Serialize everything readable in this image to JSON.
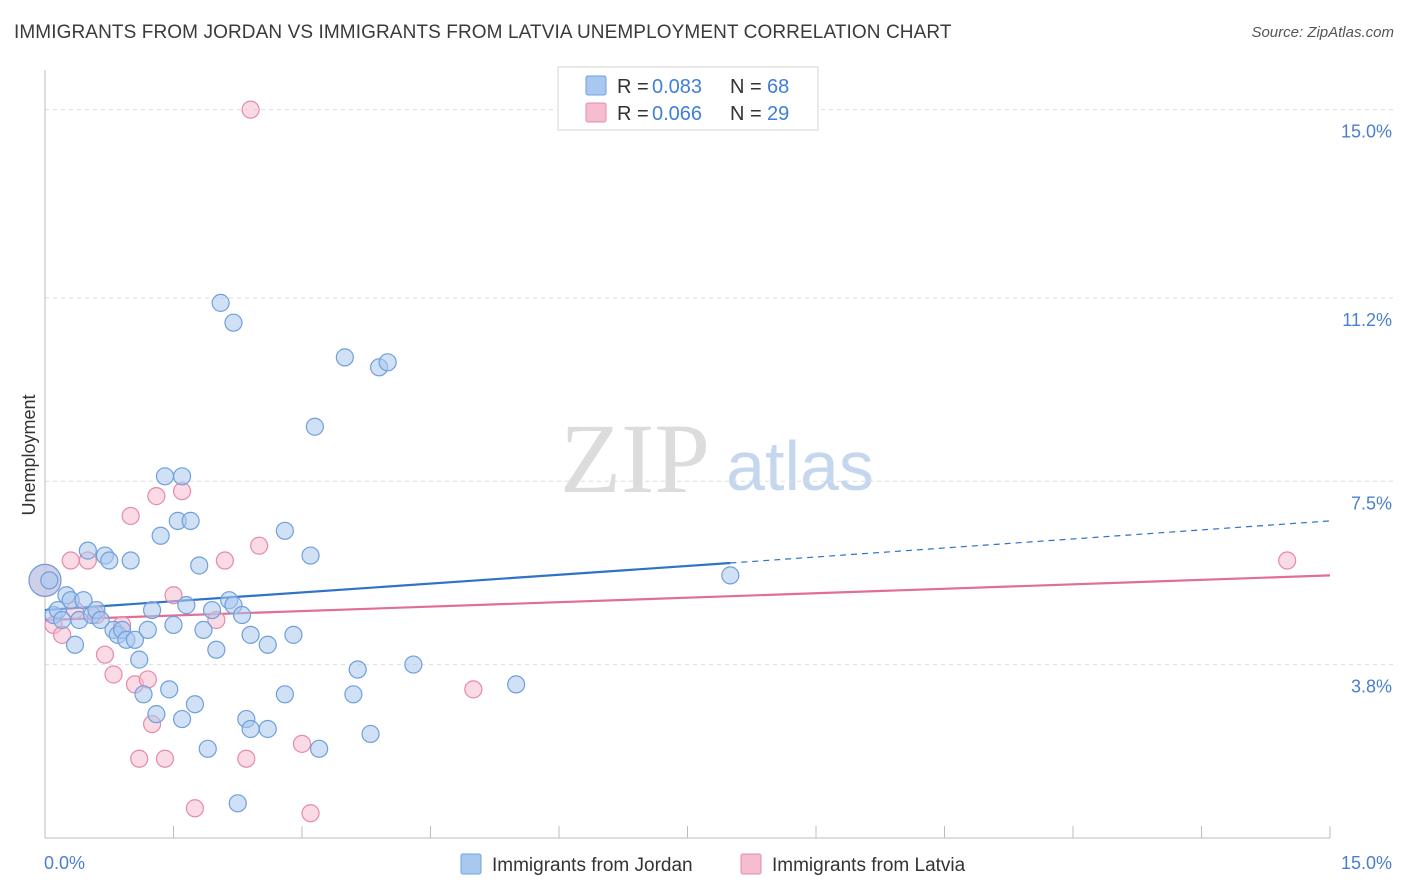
{
  "header": {
    "title": "IMMIGRANTS FROM JORDAN VS IMMIGRANTS FROM LATVIA UNEMPLOYMENT CORRELATION CHART",
    "source": "Source: ZipAtlas.com"
  },
  "watermark": {
    "zip": "ZIP",
    "atlas": "atlas"
  },
  "colors": {
    "jordan_fill": "#a9c8ef",
    "jordan_stroke": "#6f9fdc",
    "jordan_line": "#2f72c8",
    "latvia_fill": "#f6bcd0",
    "latvia_stroke": "#e68aa9",
    "latvia_line": "#e06e97",
    "grid": "#dddddd",
    "axis_label": "#4a7fd0"
  },
  "legend": {
    "jordan": {
      "r_label": "R = ",
      "r_value": "0.083",
      "n_label": "N = ",
      "n_value": "68"
    },
    "latvia": {
      "r_label": "R = ",
      "r_value": "0.066",
      "n_label": "N = ",
      "n_value": "29"
    }
  },
  "chart_data": {
    "type": "scatter",
    "ylabel": "Unemployment",
    "xlabel": "",
    "xlim": [
      0,
      15
    ],
    "ylim": [
      0.3,
      15.8
    ],
    "x_tick_labels": [
      "0.0%",
      "15.0%"
    ],
    "y_ticks": [
      3.8,
      7.5,
      11.2,
      15.0
    ],
    "y_tick_labels": [
      "3.8%",
      "7.5%",
      "11.2%",
      "15.0%"
    ],
    "series": [
      {
        "name": "Immigrants from Jordan",
        "trend": {
          "x0": 0,
          "y0": 4.9,
          "x1": 8.0,
          "y1": 5.85,
          "dash_x1": 15.0,
          "dash_y1": 6.7
        },
        "points": [
          [
            0.0,
            5.5
          ],
          [
            0.05,
            5.5
          ],
          [
            0.1,
            4.8
          ],
          [
            0.15,
            4.9
          ],
          [
            0.2,
            4.7
          ],
          [
            0.25,
            5.2
          ],
          [
            0.3,
            5.1
          ],
          [
            0.35,
            4.2
          ],
          [
            0.4,
            4.7
          ],
          [
            0.45,
            5.1
          ],
          [
            0.5,
            6.1
          ],
          [
            0.55,
            4.8
          ],
          [
            0.6,
            4.9
          ],
          [
            0.65,
            4.7
          ],
          [
            0.7,
            6.0
          ],
          [
            0.75,
            5.9
          ],
          [
            0.8,
            4.5
          ],
          [
            0.85,
            4.4
          ],
          [
            0.9,
            4.5
          ],
          [
            0.95,
            4.3
          ],
          [
            1.0,
            5.9
          ],
          [
            1.05,
            4.3
          ],
          [
            1.1,
            3.9
          ],
          [
            1.15,
            3.2
          ],
          [
            1.2,
            4.5
          ],
          [
            1.25,
            4.9
          ],
          [
            1.3,
            2.8
          ],
          [
            1.35,
            6.4
          ],
          [
            1.4,
            7.6
          ],
          [
            1.45,
            3.3
          ],
          [
            1.5,
            4.6
          ],
          [
            1.55,
            6.7
          ],
          [
            1.6,
            7.6
          ],
          [
            1.65,
            5.0
          ],
          [
            1.7,
            6.7
          ],
          [
            1.75,
            3.0
          ],
          [
            1.8,
            5.8
          ],
          [
            1.85,
            4.5
          ],
          [
            1.9,
            2.1
          ],
          [
            1.95,
            4.9
          ],
          [
            2.0,
            4.1
          ],
          [
            2.15,
            5.1
          ],
          [
            2.2,
            5.0
          ],
          [
            2.25,
            1.0
          ],
          [
            2.3,
            4.8
          ],
          [
            2.35,
            2.7
          ],
          [
            2.4,
            4.4
          ],
          [
            2.05,
            11.1
          ],
          [
            2.2,
            10.7
          ],
          [
            2.4,
            2.5
          ],
          [
            2.6,
            4.2
          ],
          [
            2.8,
            6.5
          ],
          [
            2.8,
            3.2
          ],
          [
            2.9,
            4.4
          ],
          [
            3.1,
            6.0
          ],
          [
            3.15,
            8.6
          ],
          [
            3.2,
            2.1
          ],
          [
            3.5,
            10.0
          ],
          [
            3.6,
            3.2
          ],
          [
            3.65,
            3.7
          ],
          [
            3.8,
            2.4
          ],
          [
            3.9,
            9.8
          ],
          [
            4.0,
            9.9
          ],
          [
            4.3,
            3.8
          ],
          [
            5.5,
            3.4
          ],
          [
            8.0,
            5.6
          ],
          [
            2.6,
            2.5
          ],
          [
            1.6,
            2.7
          ]
        ]
      },
      {
        "name": "Immigrants from Latvia",
        "trend": {
          "x0": 0,
          "y0": 4.7,
          "x1": 15.0,
          "y1": 5.6
        },
        "points": [
          [
            0.0,
            5.5
          ],
          [
            0.1,
            4.6
          ],
          [
            0.2,
            4.4
          ],
          [
            0.3,
            5.9
          ],
          [
            0.35,
            4.9
          ],
          [
            0.5,
            5.9
          ],
          [
            0.6,
            4.8
          ],
          [
            0.7,
            4.0
          ],
          [
            0.8,
            3.6
          ],
          [
            0.9,
            4.6
          ],
          [
            1.0,
            6.8
          ],
          [
            1.05,
            3.4
          ],
          [
            1.1,
            1.9
          ],
          [
            1.2,
            3.5
          ],
          [
            1.25,
            2.6
          ],
          [
            1.3,
            7.2
          ],
          [
            1.4,
            1.9
          ],
          [
            1.5,
            5.2
          ],
          [
            1.6,
            7.3
          ],
          [
            1.75,
            0.9
          ],
          [
            2.0,
            4.7
          ],
          [
            2.1,
            5.9
          ],
          [
            2.35,
            1.9
          ],
          [
            2.5,
            6.2
          ],
          [
            3.0,
            2.2
          ],
          [
            3.1,
            0.8
          ],
          [
            2.4,
            15.0
          ],
          [
            5.0,
            3.3
          ],
          [
            14.5,
            5.9
          ]
        ]
      }
    ],
    "bottom_legend": [
      "Immigrants from Jordan",
      "Immigrants from Latvia"
    ]
  }
}
